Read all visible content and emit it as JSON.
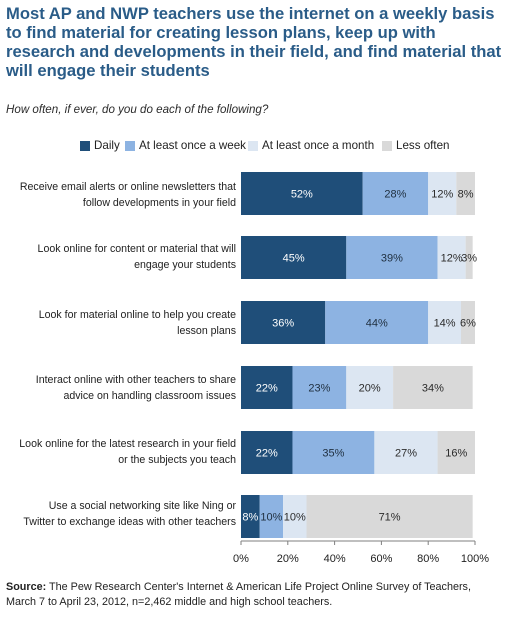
{
  "title": "Most AP and NWP teachers use the internet on a weekly basis to find material for creating lesson plans, keep up with research and developments in their field, and find material that will engage their students",
  "subtitle": "How often, if ever, do you do each of the following?",
  "source_label": "Source:",
  "source_text": "The Pew Research Center's Internet & American Life Project Online Survey of Teachers, March 7 to April 23, 2012, n=2,462 middle and high school teachers.",
  "colors": {
    "title": "#2a5c88",
    "daily": "#1f4e79",
    "weekly": "#8db3e2",
    "monthly": "#dce6f2",
    "less_often": "#d9d9d9"
  },
  "chart_data": {
    "type": "bar",
    "orientation": "horizontal",
    "stacked": true,
    "categories": [
      "Receive email alerts or online newsletters that follow developments in  your field",
      "Look online for content or material that will engage your students",
      "Look for material online to help you create lesson plans",
      "Interact online with other teachers to share advice on handling classroom issues",
      "Look online for the latest research in your field or the subjects you teach",
      "Use a social networking site like Ning or Twitter to exchange ideas with other teachers"
    ],
    "category_lines": [
      [
        "Receive email alerts or online newsletters that",
        "follow developments in  your field"
      ],
      [
        "Look online for content or material that will",
        "engage your students"
      ],
      [
        "Look for material online to help you create",
        "lesson plans"
      ],
      [
        "Interact online with other teachers to share",
        "advice on handling classroom issues"
      ],
      [
        "Look online for the latest research in your field",
        "or the subjects you teach"
      ],
      [
        "Use a social networking site like Ning or",
        "Twitter to exchange ideas with other teachers"
      ]
    ],
    "series": [
      {
        "name": "Daily",
        "values": [
          52,
          45,
          36,
          22,
          22,
          8
        ]
      },
      {
        "name": "At least once a week",
        "values": [
          28,
          39,
          44,
          23,
          35,
          10
        ]
      },
      {
        "name": "At least once a month",
        "values": [
          12,
          12,
          14,
          20,
          27,
          10
        ]
      },
      {
        "name": "Less often",
        "values": [
          8,
          3,
          6,
          34,
          16,
          71
        ]
      }
    ],
    "value_labels": [
      [
        "52%",
        "28%",
        "12%",
        "8%"
      ],
      [
        "45%",
        "39%",
        "12%",
        "3%"
      ],
      [
        "36%",
        "44%",
        "14%",
        "6%"
      ],
      [
        "22%",
        "23%",
        "20%",
        "34%"
      ],
      [
        "22%",
        "35%",
        "27%",
        "16%"
      ],
      [
        "8%",
        "10%",
        "10%",
        "71%"
      ]
    ],
    "xlim": [
      0,
      100
    ],
    "x_ticks": [
      "0%",
      "20%",
      "40%",
      "60%",
      "80%",
      "100%"
    ],
    "legend_position": "top",
    "grid": false
  }
}
